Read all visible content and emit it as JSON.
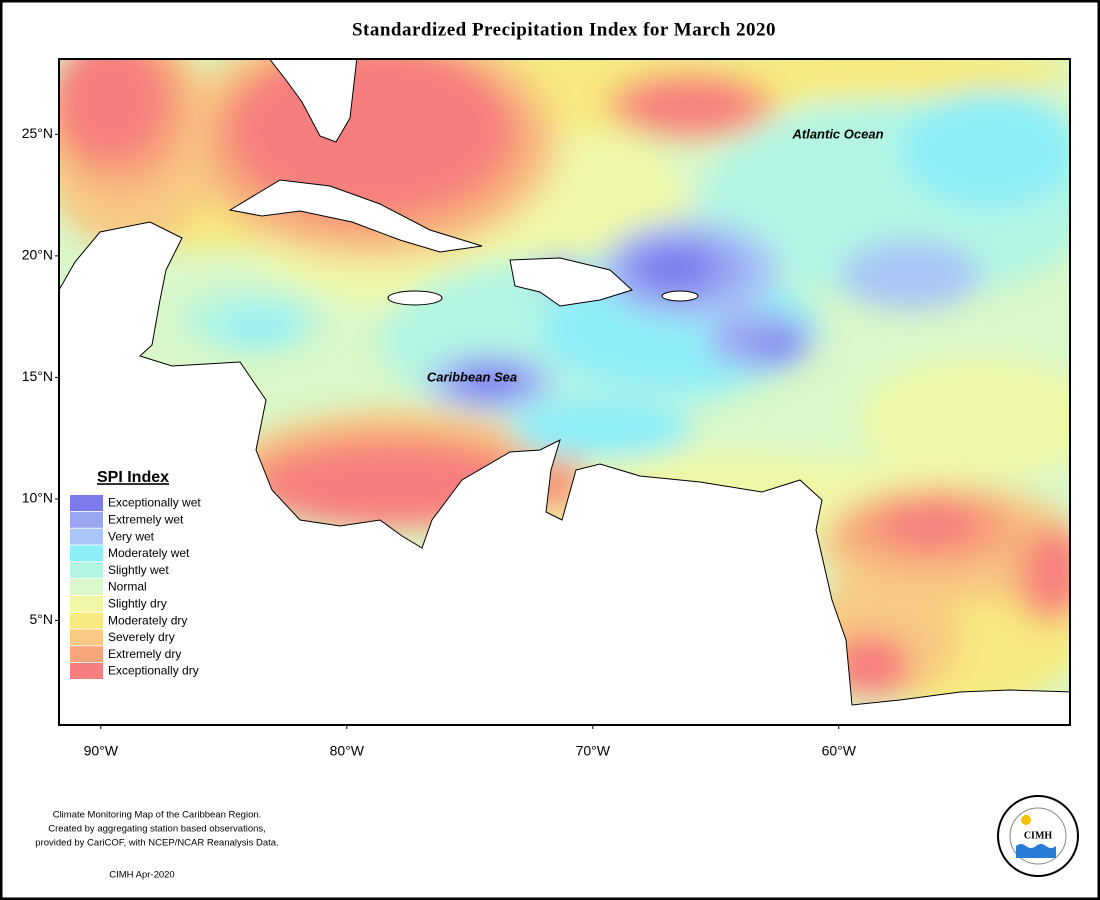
{
  "title": "Standardized Precipitation Index for March 2020",
  "map": {
    "xlim": [
      -91.7,
      -50.6
    ],
    "ylim": [
      0.7,
      28.1
    ],
    "xticks": [
      {
        "value": -90,
        "label": "90°W"
      },
      {
        "value": -80,
        "label": "80°W"
      },
      {
        "value": -70,
        "label": "70°W"
      },
      {
        "value": -60,
        "label": "60°W"
      }
    ],
    "yticks": [
      {
        "value": 25,
        "label": "25°N"
      },
      {
        "value": 20,
        "label": "20°N"
      },
      {
        "value": 15,
        "label": "15°N"
      },
      {
        "value": 10,
        "label": "10°N"
      },
      {
        "value": 5,
        "label": "5°N"
      }
    ],
    "labels": [
      "Atlantic Ocean",
      "Caribbean Sea"
    ]
  },
  "legend": {
    "title": "SPI Index",
    "items": [
      {
        "label": "Exceptionally wet",
        "color": "#7b7bef"
      },
      {
        "label": "Extremely wet",
        "color": "#9aa6f2"
      },
      {
        "label": "Very wet",
        "color": "#a9c6f7"
      },
      {
        "label": "Moderately wet",
        "color": "#8eeef7"
      },
      {
        "label": "Slightly wet",
        "color": "#b3f5e3"
      },
      {
        "label": "Normal",
        "color": "#d9f7c8"
      },
      {
        "label": "Slightly dry",
        "color": "#eff7a6"
      },
      {
        "label": "Moderately dry",
        "color": "#f7ea7e"
      },
      {
        "label": "Severely dry",
        "color": "#f7c982"
      },
      {
        "label": "Extremely dry",
        "color": "#f7a57a"
      },
      {
        "label": "Exceptionally dry",
        "color": "#f77e7e"
      }
    ]
  },
  "footer": {
    "notes": [
      "Climate Monitoring Map of the Caribbean Region.",
      "Created by aggregating station based observations,",
      "provided by CariCOF, with NCEP/NCAR Reanalysis Data."
    ],
    "credit": "CIMH Apr-2020"
  },
  "logo": {
    "text": "CIMH"
  }
}
